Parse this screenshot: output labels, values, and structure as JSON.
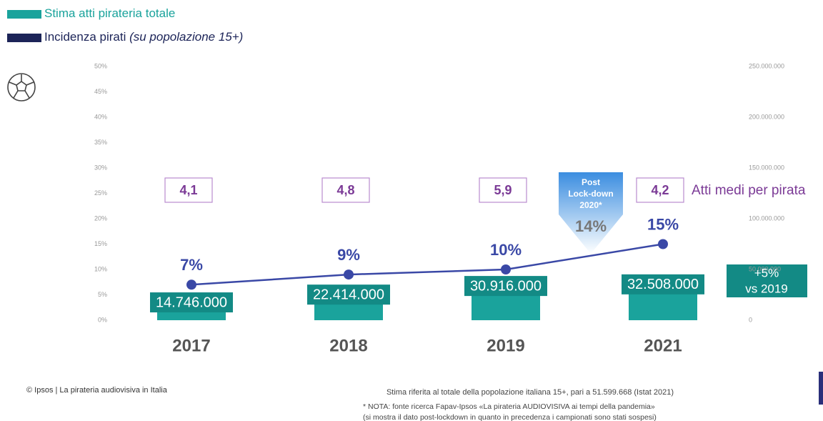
{
  "chart_data": {
    "type": "bar-line",
    "categories": [
      "2017",
      "2018",
      "2019",
      "2021"
    ],
    "series": [
      {
        "name": "Stima atti pirateria totale",
        "color": "#1aa39c",
        "label_color": "#138a85",
        "type": "bar",
        "axis": "y2",
        "values": [
          14746000,
          22414000,
          30916000,
          32508000
        ],
        "value_labels": [
          "14.746.000",
          "22.414.000",
          "30.916.000",
          "32.508.000"
        ]
      },
      {
        "name": "Incidenza pirati",
        "color": "#3a48a6",
        "type": "line",
        "axis": "y",
        "values": [
          7,
          9,
          10,
          15
        ],
        "value_labels": [
          "7%",
          "9%",
          "10%",
          "15%"
        ]
      }
    ],
    "legend_note": "(su popolazione 15+)",
    "legend_colors": [
      "#1aa39c",
      "#1c2458"
    ],
    "ylim": [
      0,
      50
    ],
    "yticks": [
      {
        "value": 0,
        "label": "0%"
      },
      {
        "value": 5,
        "label": "5%"
      },
      {
        "value": 10,
        "label": "10%"
      },
      {
        "value": 15,
        "label": "15%"
      },
      {
        "value": 20,
        "label": "20%"
      },
      {
        "value": 25,
        "label": "25%"
      },
      {
        "value": 30,
        "label": "30%"
      },
      {
        "value": 35,
        "label": "35%"
      },
      {
        "value": 40,
        "label": "40%"
      },
      {
        "value": 45,
        "label": "45%"
      },
      {
        "value": 50,
        "label": "50%"
      }
    ],
    "y2lim": [
      0,
      250000000
    ],
    "y2ticks": [
      0,
      {
        "value": 50000000,
        "label": "50.000.000"
      },
      {
        "value": 100000000,
        "label": "100.000.000"
      },
      {
        "value": 150000000,
        "label": "150.000.000"
      },
      {
        "value": 200000000,
        "label": "200.000.000"
      },
      {
        "value": 250000000,
        "label": "250.000.000"
      }
    ],
    "avg_acts": {
      "label": "Atti medi per pirata",
      "values": [
        4.1,
        4.8,
        5.9,
        4.2
      ],
      "value_labels": [
        "4,1",
        "4,8",
        "5,9",
        "4,2"
      ]
    },
    "annotations": {
      "post_lockdown": {
        "lines": [
          "Post",
          "Lock-down",
          "2020*"
        ],
        "value_label": "14%"
      },
      "growth": {
        "lines": [
          "+5%",
          "vs 2019"
        ]
      }
    },
    "footer": {
      "source": "© Ipsos | La pirateria audiovisiva in Italia",
      "estimate_note": "Stima riferita al totale della popolazione italiana 15+, pari a 51.599.668 (Istat 2021)",
      "notes": [
        "* NOTA: fonte ricerca Fapav-Ipsos «La pirateria AUDIOVISIVA ai tempi della pandemia»",
        "(si mostra il dato post-lockdown in quanto in precedenza i campionati sono stati sospesi)"
      ]
    }
  }
}
